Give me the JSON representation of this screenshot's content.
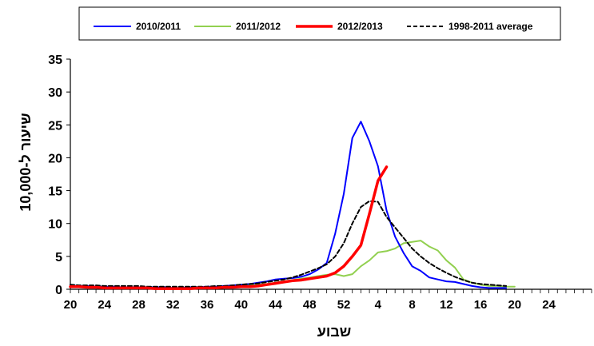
{
  "chart_data": {
    "type": "line",
    "title": "",
    "xlabel": "שבוע",
    "ylabel": "שיעור ל-10,000",
    "ylim": [
      0,
      35
    ],
    "yticks": [
      0,
      5,
      10,
      15,
      20,
      25,
      30,
      35
    ],
    "xlim_index": [
      0,
      61
    ],
    "xticks": [
      {
        "i": 0,
        "label": "20"
      },
      {
        "i": 4,
        "label": "24"
      },
      {
        "i": 8,
        "label": "28"
      },
      {
        "i": 12,
        "label": "32"
      },
      {
        "i": 16,
        "label": "36"
      },
      {
        "i": 20,
        "label": "40"
      },
      {
        "i": 24,
        "label": "44"
      },
      {
        "i": 28,
        "label": "48"
      },
      {
        "i": 32,
        "label": "52"
      },
      {
        "i": 36,
        "label": "4"
      },
      {
        "i": 40,
        "label": "8"
      },
      {
        "i": 44,
        "label": "12"
      },
      {
        "i": 48,
        "label": "16"
      },
      {
        "i": 52,
        "label": "20"
      },
      {
        "i": 56,
        "label": "24"
      }
    ],
    "x_note": "Index counts epidemiological weeks starting at week 20 (index 0); week 52 is index 32 and week 1 of the following year is index 33.",
    "legend": {
      "position": "top",
      "boxed": true
    },
    "series": [
      {
        "name": "2010/2011",
        "color": "#0000ff",
        "style": "solid",
        "values": [
          0.6,
          0.5,
          0.5,
          0.4,
          0.4,
          0.4,
          0.3,
          0.3,
          0.3,
          0.3,
          0.3,
          0.3,
          0.2,
          0.2,
          0.3,
          0.3,
          0.4,
          0.4,
          0.5,
          0.6,
          0.7,
          0.8,
          1.0,
          1.2,
          1.5,
          1.6,
          1.7,
          1.9,
          2.3,
          3.0,
          4.0,
          8.5,
          14.5,
          23.0,
          25.5,
          22.5,
          18.7,
          12.0,
          8.0,
          5.5,
          3.5,
          2.8,
          1.8,
          1.5,
          1.2,
          1.1,
          0.8,
          0.5,
          0.3,
          0.2,
          0.2,
          0.2
        ]
      },
      {
        "name": "2011/2012",
        "color": "#92d050",
        "style": "solid",
        "values": [
          0.4,
          0.3,
          0.3,
          0.3,
          0.3,
          0.3,
          0.3,
          0.3,
          0.3,
          0.3,
          0.2,
          0.2,
          0.2,
          0.2,
          0.2,
          0.3,
          0.3,
          0.3,
          0.4,
          0.4,
          0.5,
          0.6,
          0.7,
          0.8,
          1.0,
          1.2,
          1.4,
          1.6,
          1.8,
          2.0,
          2.2,
          2.3,
          2.0,
          2.3,
          3.5,
          4.4,
          5.6,
          5.8,
          6.2,
          7.0,
          7.2,
          7.4,
          6.5,
          5.9,
          4.4,
          3.3,
          1.5,
          1.0,
          0.7,
          0.5,
          0.5,
          0.4,
          0.4
        ]
      },
      {
        "name": "2012/2013",
        "color": "#ff0000",
        "style": "bold",
        "values": [
          0.4,
          0.4,
          0.3,
          0.3,
          0.2,
          0.2,
          0.2,
          0.2,
          0.2,
          0.2,
          0.1,
          0.1,
          0.1,
          0.1,
          0.1,
          0.2,
          0.2,
          0.2,
          0.3,
          0.3,
          0.4,
          0.4,
          0.5,
          0.7,
          0.9,
          1.1,
          1.3,
          1.4,
          1.6,
          1.8,
          2.0,
          2.5,
          3.5,
          5.0,
          6.7,
          11.5,
          16.5,
          18.6
        ]
      },
      {
        "name": "1998-2011 average",
        "color": "#000000",
        "style": "dashed",
        "values": [
          0.7,
          0.6,
          0.6,
          0.6,
          0.5,
          0.5,
          0.5,
          0.5,
          0.5,
          0.4,
          0.4,
          0.4,
          0.4,
          0.4,
          0.4,
          0.4,
          0.4,
          0.5,
          0.5,
          0.6,
          0.7,
          0.8,
          0.9,
          1.1,
          1.3,
          1.5,
          1.8,
          2.2,
          2.7,
          3.2,
          3.8,
          5.0,
          7.0,
          10.0,
          12.5,
          13.4,
          13.3,
          11.0,
          9.4,
          7.8,
          6.2,
          5.0,
          4.0,
          3.2,
          2.5,
          1.9,
          1.4,
          1.0,
          0.8,
          0.7,
          0.6,
          0.5
        ]
      }
    ]
  }
}
